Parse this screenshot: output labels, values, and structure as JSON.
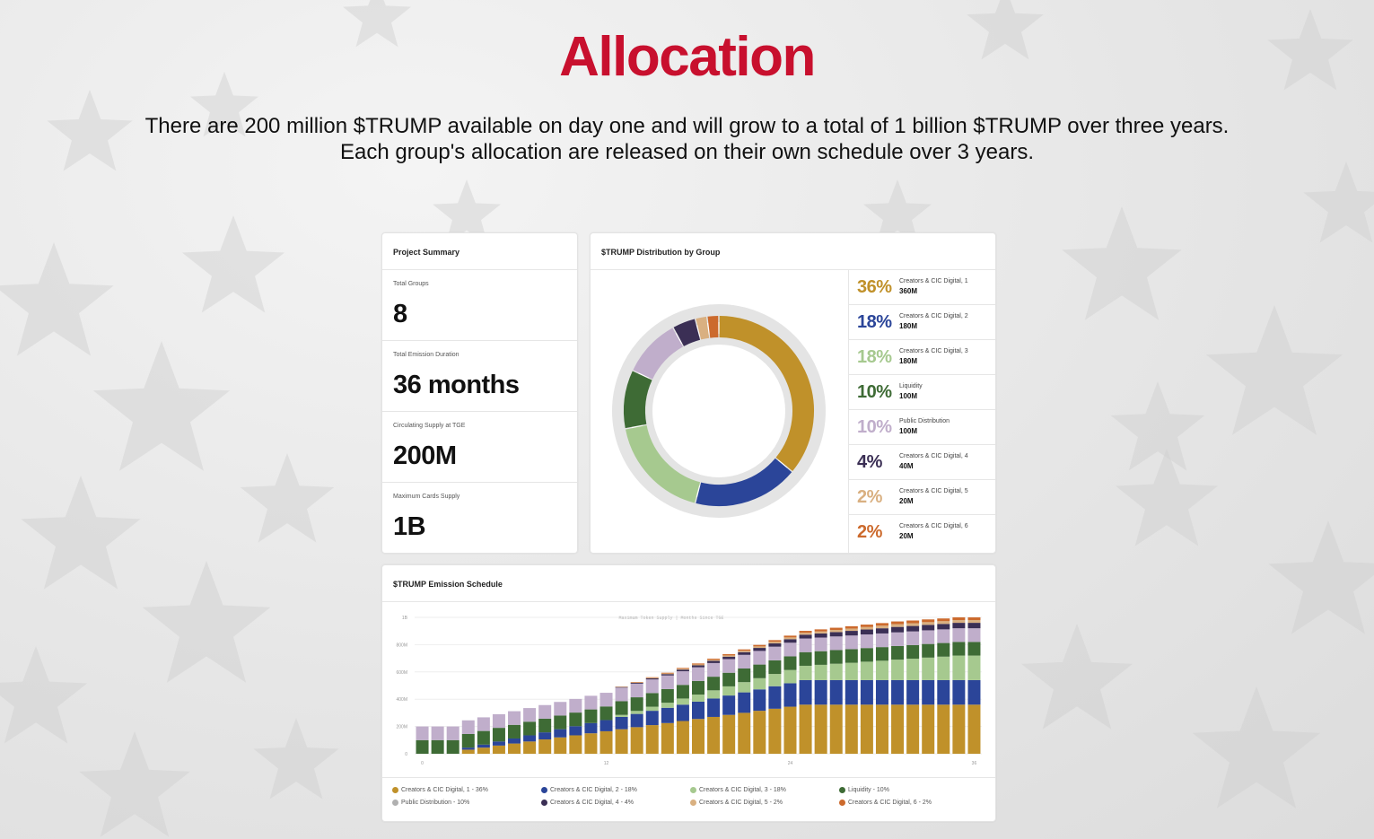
{
  "title": "Allocation",
  "subtitle": [
    "There are 200 million $TRUMP available on day one and will grow to a total of 1 billion $TRUMP over three years.",
    "Each group's allocation are released on their own schedule over 3 years."
  ],
  "summary": {
    "header": "Project Summary",
    "stats": [
      {
        "label": "Total Groups",
        "value": "8"
      },
      {
        "label": "Total Emission Duration",
        "value": "36 months"
      },
      {
        "label": "Circulating Supply at TGE",
        "value": "200M"
      },
      {
        "label": "Maximum Cards Supply",
        "value": "1B"
      }
    ]
  },
  "distribution": {
    "header": "$TRUMP Distribution by Group",
    "groups": [
      {
        "pct": "36%",
        "name": "Creators & CIC Digital, 1",
        "amount": "360M",
        "value": 36,
        "color": "#c0912a"
      },
      {
        "pct": "18%",
        "name": "Creators & CIC Digital, 2",
        "amount": "180M",
        "value": 18,
        "color": "#2b4599"
      },
      {
        "pct": "18%",
        "name": "Creators & CIC Digital, 3",
        "amount": "180M",
        "value": 18,
        "color": "#a6c98f"
      },
      {
        "pct": "10%",
        "name": "Liquidity",
        "amount": "100M",
        "value": 10,
        "color": "#3e6b35"
      },
      {
        "pct": "10%",
        "name": "Public Distribution",
        "amount": "100M",
        "value": 10,
        "color": "#c0aecb"
      },
      {
        "pct": "4%",
        "name": "Creators & CIC Digital, 4",
        "amount": "40M",
        "value": 4,
        "color": "#3b2f55"
      },
      {
        "pct": "2%",
        "name": "Creators & CIC Digital, 5",
        "amount": "20M",
        "value": 2,
        "color": "#d9b081"
      },
      {
        "pct": "2%",
        "name": "Creators & CIC Digital, 6",
        "amount": "20M",
        "value": 2,
        "color": "#cc6a2d"
      }
    ]
  },
  "emission": {
    "header": "$TRUMP Emission Schedule",
    "chart_note": "Maximum Token Supply | Months Since TGE",
    "legend": [
      "Creators & CIC Digital, 1 - 36%",
      "Creators & CIC Digital, 2 - 18%",
      "Creators & CIC Digital, 3 - 18%",
      "Liquidity - 10%",
      "Public Distribution - 10%",
      "Creators & CIC Digital, 4 - 4%",
      "Creators & CIC Digital, 5 - 2%",
      "Creators & CIC Digital, 6 - 2%"
    ],
    "legend_colors": [
      "#c0912a",
      "#2b4599",
      "#a6c98f",
      "#3e6b35",
      "#b0b0b0",
      "#3b2f55",
      "#d9b081",
      "#cc6a2d"
    ]
  },
  "chart_data": {
    "type": "bar",
    "stacked": true,
    "xlabel": "Months Since TGE",
    "ylabel": "Maximum Token Supply",
    "x_ticks": [
      "0",
      "12",
      "24",
      "36"
    ],
    "y_ticks": [
      "0",
      "200M",
      "400M",
      "600M",
      "800M",
      "1B"
    ],
    "ylim": [
      0,
      1000
    ],
    "x": [
      0,
      1,
      2,
      3,
      4,
      5,
      6,
      7,
      8,
      9,
      10,
      11,
      12,
      13,
      14,
      15,
      16,
      17,
      18,
      19,
      20,
      21,
      22,
      23,
      24,
      25,
      26,
      27,
      28,
      29,
      30,
      31,
      32,
      33,
      34,
      35,
      36
    ],
    "series": [
      {
        "name": "Creators & CIC Digital, 1 - 36%",
        "color": "#c0912a",
        "values": [
          0,
          0,
          0,
          30,
          45,
          60,
          75,
          90,
          105,
          120,
          135,
          150,
          165,
          180,
          195,
          210,
          225,
          240,
          255,
          270,
          285,
          300,
          315,
          330,
          345,
          360,
          360,
          360,
          360,
          360,
          360,
          360,
          360,
          360,
          360,
          360,
          360
        ]
      },
      {
        "name": "Creators & CIC Digital, 2 - 18%",
        "color": "#2b4599",
        "values": [
          0,
          0,
          0,
          15,
          22,
          30,
          37,
          45,
          52,
          60,
          67,
          75,
          82,
          90,
          97,
          105,
          112,
          120,
          127,
          135,
          142,
          150,
          157,
          165,
          172,
          180,
          180,
          180,
          180,
          180,
          180,
          180,
          180,
          180,
          180,
          180,
          180
        ]
      },
      {
        "name": "Creators & CIC Digital, 3 - 18%",
        "color": "#a6c98f",
        "values": [
          0,
          0,
          0,
          0,
          0,
          0,
          0,
          0,
          0,
          0,
          0,
          0,
          0,
          15,
          22,
          30,
          37,
          45,
          52,
          60,
          67,
          75,
          82,
          90,
          97,
          105,
          112,
          120,
          127,
          135,
          142,
          150,
          157,
          165,
          172,
          180,
          180
        ]
      },
      {
        "name": "Liquidity - 10%",
        "color": "#3e6b35",
        "values": [
          100,
          100,
          100,
          100,
          100,
          100,
          100,
          100,
          100,
          100,
          100,
          100,
          100,
          100,
          100,
          100,
          100,
          100,
          100,
          100,
          100,
          100,
          100,
          100,
          100,
          100,
          100,
          100,
          100,
          100,
          100,
          100,
          100,
          100,
          100,
          100,
          100
        ]
      },
      {
        "name": "Public Distribution - 10%",
        "color": "#c0aecb",
        "values": [
          100,
          100,
          100,
          100,
          100,
          100,
          100,
          100,
          100,
          100,
          100,
          100,
          100,
          100,
          100,
          100,
          100,
          100,
          100,
          100,
          100,
          100,
          100,
          100,
          100,
          100,
          100,
          100,
          100,
          100,
          100,
          100,
          100,
          100,
          100,
          100,
          100
        ]
      },
      {
        "name": "Creators & CIC Digital, 4 - 4%",
        "color": "#3b2f55",
        "values": [
          0,
          0,
          0,
          0,
          0,
          0,
          0,
          0,
          0,
          0,
          0,
          0,
          0,
          4,
          6,
          8,
          10,
          12,
          14,
          16,
          18,
          20,
          22,
          24,
          26,
          28,
          30,
          32,
          34,
          36,
          38,
          40,
          40,
          40,
          40,
          40,
          40
        ]
      },
      {
        "name": "Creators & CIC Digital, 5 - 2%",
        "color": "#d9b081",
        "values": [
          0,
          0,
          0,
          0,
          0,
          0,
          0,
          0,
          0,
          0,
          0,
          0,
          0,
          2,
          3,
          4,
          5,
          6,
          7,
          8,
          9,
          10,
          11,
          12,
          13,
          14,
          15,
          16,
          17,
          18,
          19,
          20,
          20,
          20,
          20,
          20,
          20
        ]
      },
      {
        "name": "Creators & CIC Digital, 6 - 2%",
        "color": "#cc6a2d",
        "values": [
          0,
          0,
          0,
          0,
          0,
          0,
          0,
          0,
          0,
          0,
          0,
          0,
          0,
          2,
          3,
          4,
          5,
          6,
          7,
          8,
          9,
          10,
          11,
          12,
          13,
          14,
          15,
          16,
          17,
          18,
          19,
          20,
          20,
          20,
          20,
          20,
          20
        ]
      }
    ]
  }
}
